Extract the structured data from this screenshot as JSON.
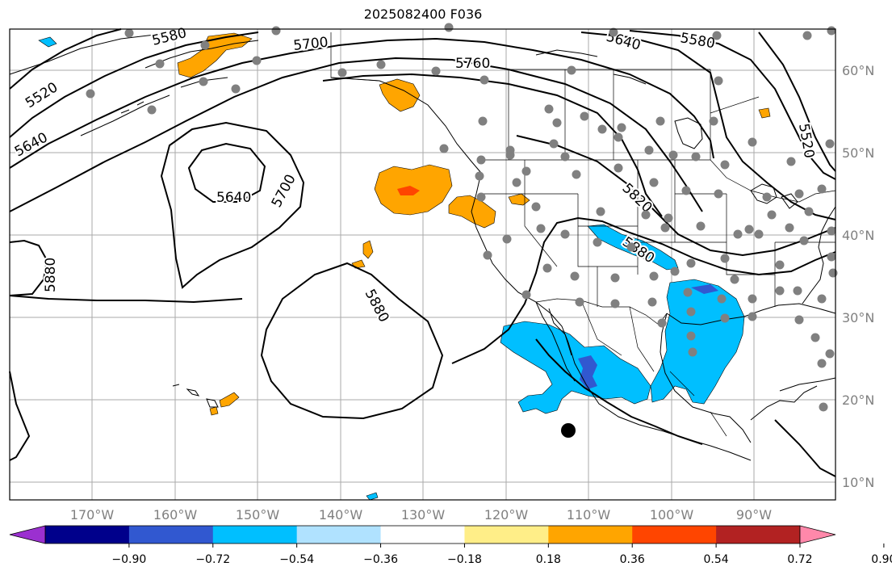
{
  "title": "2025082400 F036",
  "lon_ticks": [
    "170°W",
    "160°W",
    "150°W",
    "140°W",
    "130°W",
    "120°W",
    "110°W",
    "100°W",
    "90°W"
  ],
  "lat_ticks": [
    "60°N",
    "50°N",
    "40°N",
    "30°N",
    "20°N",
    "10°N"
  ],
  "colorbar": {
    "colors": [
      "#9b30d0",
      "#00008b",
      "#3158d0",
      "#00bfff",
      "#b0e2ff",
      "#ffffff",
      "#ffee88",
      "#ffa500",
      "#ff4500",
      "#b22222",
      "#ff88aa"
    ],
    "tick_labels": [
      "−0.90",
      "−0.72",
      "−0.54",
      "−0.36",
      "−0.18",
      "0.18",
      "0.36",
      "0.54",
      "0.72",
      "0.90"
    ]
  },
  "contour_labels": {
    "c5580_nw": "5580",
    "c5700_n": "5700",
    "c5520_w": "5520",
    "c5640_w": "5640",
    "c5640_low": "5640",
    "c5700_low": "5700",
    "c5880_w": "5880",
    "c5880_high": "5880",
    "c5760_n": "5760",
    "c5640_ne": "5640",
    "c5580_ne": "5580",
    "c5520_e": "5520",
    "c5820": "5820",
    "c5880_mx": "5880"
  },
  "colors": {
    "pos_fill": "#ffa500",
    "pos_strong": "#ff4500",
    "neg_fill": "#00bfff",
    "neg_strong": "#3158d0",
    "station": "#808080",
    "grid": "#aaaaaa"
  },
  "legend_marker": "black-dot"
}
